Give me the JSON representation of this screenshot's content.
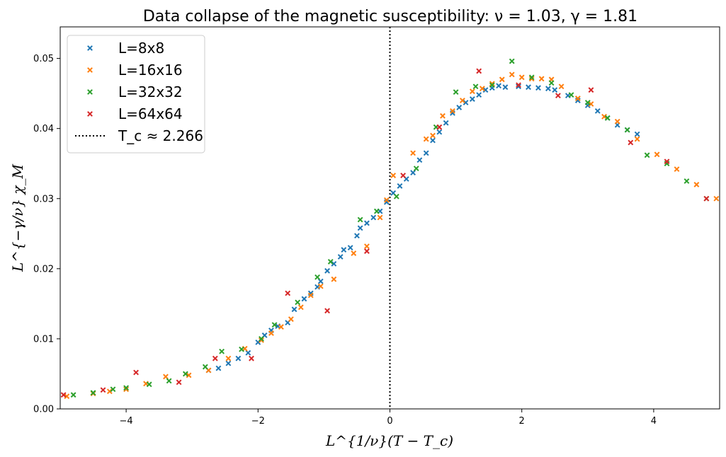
{
  "chart_data": {
    "type": "scatter",
    "title": "Data collapse of the magnetic susceptibility: ν = 1.03, γ = 1.81",
    "xlabel": "L^{1/ν}(T − T_c)",
    "ylabel": "L^{−γ/ν} χ_M",
    "xlim": [
      -5,
      5
    ],
    "ylim": [
      0,
      0.0545
    ],
    "x_ticks": [
      -4,
      -2,
      0,
      2,
      4
    ],
    "x_tick_labels": [
      "−4",
      "−2",
      "0",
      "2",
      "4"
    ],
    "y_ticks": [
      0,
      0.01,
      0.02,
      0.03,
      0.04,
      0.05
    ],
    "y_tick_labels": [
      "0.00",
      "0.01",
      "0.02",
      "0.03",
      "0.04",
      "0.05"
    ],
    "grid": false,
    "legend_position": "top-left",
    "vline": {
      "x": 0,
      "style": "dotted",
      "label": "T_c ≈ 2.266",
      "color": "#000000"
    },
    "series": [
      {
        "name": "L=8x8",
        "color": "#1f77b4",
        "marker": "x",
        "x": [
          -2.75,
          -2.6,
          -2.45,
          -2.3,
          -2.15,
          -2.0,
          -1.9,
          -1.8,
          -1.7,
          -1.55,
          -1.45,
          -1.3,
          -1.2,
          -1.1,
          -1.05,
          -0.95,
          -0.85,
          -0.75,
          -0.7,
          -0.6,
          -0.5,
          -0.45,
          -0.35,
          -0.25,
          -0.15,
          -0.05,
          0.05,
          0.15,
          0.25,
          0.35,
          0.45,
          0.55,
          0.65,
          0.75,
          0.85,
          0.95,
          1.05,
          1.15,
          1.25,
          1.35,
          1.45,
          1.55,
          1.65,
          1.75,
          1.95,
          2.1,
          2.25,
          2.4,
          2.5,
          2.7,
          2.85,
          3.0,
          3.15,
          3.3,
          3.45,
          3.6,
          3.75
        ],
        "y": [
          0.0055,
          0.0058,
          0.0065,
          0.0072,
          0.008,
          0.0095,
          0.0105,
          0.0112,
          0.0118,
          0.0123,
          0.0142,
          0.0157,
          0.0165,
          0.0174,
          0.0182,
          0.0197,
          0.0207,
          0.0217,
          0.0227,
          0.023,
          0.0247,
          0.0258,
          0.0265,
          0.0273,
          0.0282,
          0.0295,
          0.0308,
          0.0318,
          0.0328,
          0.0337,
          0.0355,
          0.0365,
          0.0383,
          0.0395,
          0.0408,
          0.0422,
          0.043,
          0.0437,
          0.0442,
          0.0448,
          0.0455,
          0.0458,
          0.0461,
          0.0459,
          0.046,
          0.0459,
          0.0458,
          0.0457,
          0.0455,
          0.0447,
          0.044,
          0.0433,
          0.0425,
          0.0415,
          0.0405,
          0.0398,
          0.0392
        ]
      },
      {
        "name": "L=16x16",
        "color": "#ff7f0e",
        "marker": "x",
        "x": [
          -4.9,
          -4.5,
          -4.25,
          -4.0,
          -3.7,
          -3.4,
          -3.05,
          -2.75,
          -2.45,
          -2.2,
          -1.95,
          -1.8,
          -1.65,
          -1.5,
          -1.35,
          -1.2,
          -1.05,
          -0.85,
          -0.55,
          -0.35,
          -0.15,
          -0.05,
          0.05,
          0.35,
          0.55,
          0.65,
          0.8,
          0.95,
          1.1,
          1.25,
          1.4,
          1.55,
          1.7,
          1.85,
          2.0,
          2.15,
          2.3,
          2.45,
          2.6,
          2.85,
          3.05,
          3.25,
          3.45,
          3.75,
          4.05,
          4.35,
          4.65,
          4.95
        ],
        "y": [
          0.0018,
          0.0022,
          0.0025,
          0.0028,
          0.0036,
          0.0046,
          0.0048,
          0.0055,
          0.0072,
          0.0086,
          0.0098,
          0.0108,
          0.0117,
          0.0128,
          0.0145,
          0.0162,
          0.0175,
          0.0185,
          0.0222,
          0.0232,
          0.0273,
          0.0298,
          0.0333,
          0.0365,
          0.0385,
          0.039,
          0.0418,
          0.0425,
          0.044,
          0.0453,
          0.0457,
          0.0464,
          0.047,
          0.0477,
          0.0473,
          0.0471,
          0.0471,
          0.047,
          0.046,
          0.0443,
          0.0435,
          0.0417,
          0.041,
          0.0385,
          0.0363,
          0.0342,
          0.032,
          0.03
        ]
      },
      {
        "name": "L=32x32",
        "color": "#2ca02c",
        "marker": "x",
        "x": [
          -4.8,
          -4.5,
          -4.2,
          -4.0,
          -3.65,
          -3.35,
          -3.1,
          -2.8,
          -2.55,
          -2.25,
          -1.95,
          -1.75,
          -1.4,
          -1.1,
          -0.9,
          -0.45,
          -0.2,
          0.1,
          0.4,
          0.7,
          1.0,
          1.3,
          1.55,
          1.85,
          2.15,
          2.45,
          2.75,
          3.0,
          3.3,
          3.6,
          3.9,
          4.2,
          4.5,
          4.8
        ],
        "y": [
          0.002,
          0.0023,
          0.0028,
          0.003,
          0.0035,
          0.004,
          0.005,
          0.006,
          0.0082,
          0.0085,
          0.01,
          0.012,
          0.0152,
          0.0188,
          0.021,
          0.027,
          0.0282,
          0.0303,
          0.0343,
          0.0402,
          0.0452,
          0.046,
          0.0462,
          0.0496,
          0.0473,
          0.0465,
          0.0448,
          0.0437,
          0.0415,
          0.0398,
          0.0362,
          0.035,
          0.0325,
          0.03
        ]
      },
      {
        "name": "L=64x64",
        "color": "#d62728",
        "marker": "x",
        "x": [
          -4.95,
          -4.35,
          -3.85,
          -3.2,
          -2.65,
          -2.1,
          -1.55,
          -0.95,
          -0.35,
          0.2,
          0.75,
          1.35,
          1.95,
          2.55,
          3.05,
          3.65,
          4.2,
          4.8
        ],
        "y": [
          0.002,
          0.0027,
          0.0052,
          0.0038,
          0.0072,
          0.0072,
          0.0165,
          0.014,
          0.0225,
          0.0333,
          0.0402,
          0.0482,
          0.0462,
          0.0447,
          0.0455,
          0.038,
          0.0353,
          0.03
        ]
      }
    ]
  }
}
